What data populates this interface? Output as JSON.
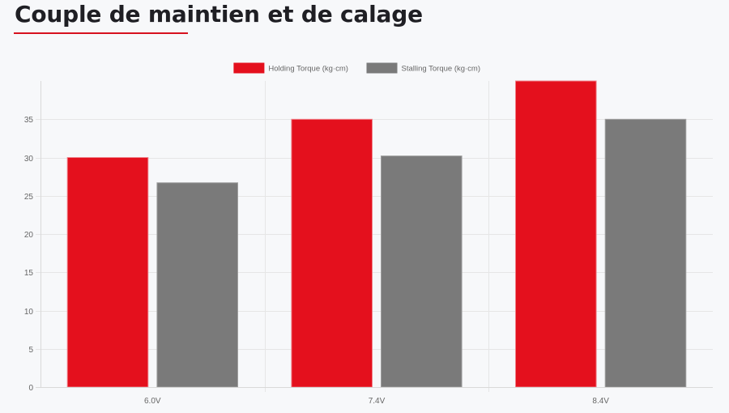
{
  "page": {
    "title": "Couple de maintien et de calage"
  },
  "colors": {
    "accent": "#d7111e",
    "holding": "#e4101d",
    "stalling": "#7a7a7a",
    "grid": "#e6e6e6"
  },
  "chart_data": {
    "type": "bar",
    "categories": [
      "6.0V",
      "7.4V",
      "8.4V"
    ],
    "series": [
      {
        "name": "Holding Torque (kg·cm)",
        "values": [
          30,
          35,
          40
        ],
        "color": "#e4101d"
      },
      {
        "name": "Stalling Torque (kg·cm)",
        "values": [
          26.7,
          30.2,
          35
        ],
        "color": "#7a7a7a"
      }
    ],
    "y_ticks": [
      0,
      5,
      10,
      15,
      20,
      25,
      30,
      35
    ],
    "ylim": [
      0,
      40
    ],
    "grid": true,
    "legend_position": "top-center",
    "title": "",
    "xlabel": "",
    "ylabel": ""
  }
}
